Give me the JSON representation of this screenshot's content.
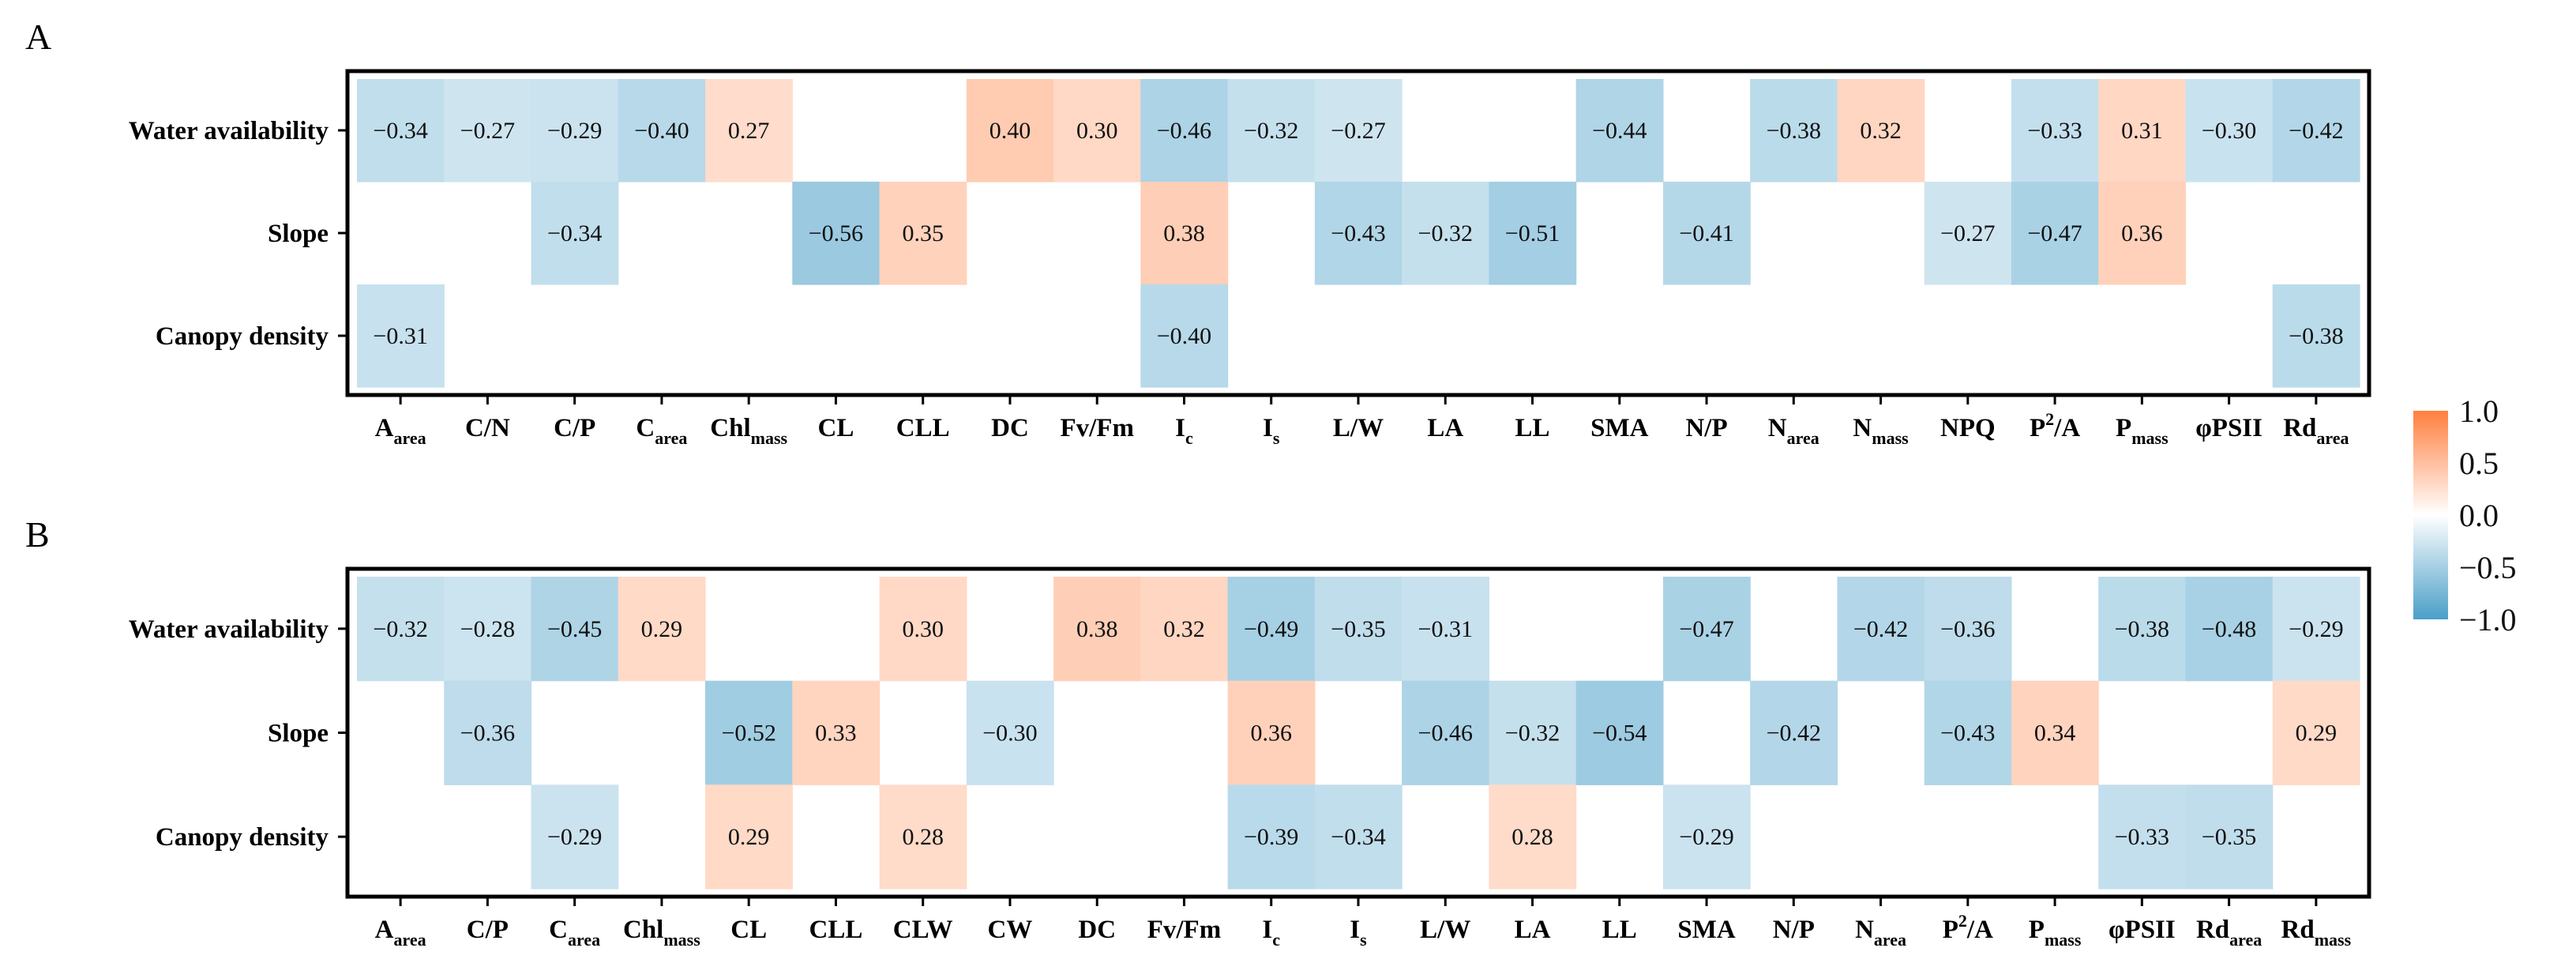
{
  "figure": {
    "legend": {
      "ticks": [
        "1.0",
        "0.5",
        "0.0",
        "−0.5",
        "−1.0"
      ],
      "colors": {
        "neg": "#4a9fc8",
        "mid": "#ffffff",
        "pos": "#ff7f3f"
      }
    }
  },
  "chart_data": [
    {
      "type": "heatmap",
      "panel_label": "A",
      "rows": [
        "Water availability",
        "Slope",
        "Canopy density"
      ],
      "columns": [
        {
          "base": "A",
          "sub": "area",
          "sup": ""
        },
        {
          "base": "C/N",
          "sub": "",
          "sup": ""
        },
        {
          "base": "C/P",
          "sub": "",
          "sup": ""
        },
        {
          "base": "C",
          "sub": "area",
          "sup": ""
        },
        {
          "base": "Chl",
          "sub": "mass",
          "sup": ""
        },
        {
          "base": "CL",
          "sub": "",
          "sup": ""
        },
        {
          "base": "CLL",
          "sub": "",
          "sup": ""
        },
        {
          "base": "DC",
          "sub": "",
          "sup": ""
        },
        {
          "base": "Fv/Fm",
          "sub": "",
          "sup": ""
        },
        {
          "base": "I",
          "sub": "c",
          "sup": ""
        },
        {
          "base": "I",
          "sub": "s",
          "sup": ""
        },
        {
          "base": "L/W",
          "sub": "",
          "sup": ""
        },
        {
          "base": "LA",
          "sub": "",
          "sup": ""
        },
        {
          "base": "LL",
          "sub": "",
          "sup": ""
        },
        {
          "base": "SMA",
          "sub": "",
          "sup": ""
        },
        {
          "base": "N/P",
          "sub": "",
          "sup": ""
        },
        {
          "base": "N",
          "sub": "area",
          "sup": ""
        },
        {
          "base": "N",
          "sub": "mass",
          "sup": ""
        },
        {
          "base": "NPQ",
          "sub": "",
          "sup": ""
        },
        {
          "base": "P",
          "sub": "",
          "sup": "2",
          "tail": "/A"
        },
        {
          "base": "P",
          "sub": "mass",
          "sup": ""
        },
        {
          "base": "φPSII",
          "sub": "",
          "sup": ""
        },
        {
          "base": "Rd",
          "sub": "area",
          "sup": ""
        }
      ],
      "values": [
        [
          -0.34,
          -0.27,
          -0.29,
          -0.4,
          0.27,
          null,
          null,
          0.4,
          0.3,
          -0.46,
          -0.32,
          -0.27,
          null,
          null,
          -0.44,
          null,
          -0.38,
          0.32,
          null,
          -0.33,
          0.31,
          -0.3,
          -0.42
        ],
        [
          null,
          null,
          -0.34,
          null,
          null,
          -0.56,
          0.35,
          null,
          null,
          0.38,
          null,
          -0.43,
          -0.32,
          -0.51,
          null,
          -0.41,
          null,
          null,
          -0.27,
          -0.47,
          0.36,
          null,
          null
        ],
        [
          -0.31,
          null,
          null,
          null,
          null,
          null,
          null,
          null,
          null,
          -0.4,
          null,
          null,
          null,
          null,
          null,
          null,
          null,
          null,
          null,
          null,
          null,
          null,
          -0.38
        ]
      ],
      "labels": [
        [
          "−0.34",
          "−0.27",
          "−0.29",
          "−0.40",
          "0.27",
          "",
          "",
          "0.40",
          "0.30",
          "−0.46",
          "−0.32",
          "−0.27",
          "",
          "",
          "−0.44",
          "",
          "−0.38",
          "0.32",
          "",
          "−0.33",
          "0.31",
          "−0.30",
          "−0.42"
        ],
        [
          "",
          "",
          "−0.34",
          "",
          "",
          "−0.56",
          "0.35",
          "",
          "",
          "0.38",
          "",
          "−0.43",
          "−0.32",
          "−0.51",
          "",
          "−0.41",
          "",
          "",
          "−0.27",
          "−0.47",
          "0.36",
          "",
          ""
        ],
        [
          "−0.31",
          "",
          "",
          "",
          "",
          "",
          "",
          "",
          "",
          "−0.40",
          "",
          "",
          "",
          "",
          "",
          "",
          "",
          "",
          "",
          "",
          "",
          "",
          "−0.38"
        ]
      ]
    },
    {
      "type": "heatmap",
      "panel_label": "B",
      "rows": [
        "Water availability",
        "Slope",
        "Canopy density"
      ],
      "columns": [
        {
          "base": "A",
          "sub": "area",
          "sup": ""
        },
        {
          "base": "C/P",
          "sub": "",
          "sup": ""
        },
        {
          "base": "C",
          "sub": "area",
          "sup": ""
        },
        {
          "base": "Chl",
          "sub": "mass",
          "sup": ""
        },
        {
          "base": "CL",
          "sub": "",
          "sup": ""
        },
        {
          "base": "CLL",
          "sub": "",
          "sup": ""
        },
        {
          "base": "CLW",
          "sub": "",
          "sup": ""
        },
        {
          "base": "CW",
          "sub": "",
          "sup": ""
        },
        {
          "base": "DC",
          "sub": "",
          "sup": ""
        },
        {
          "base": "Fv/Fm",
          "sub": "",
          "sup": ""
        },
        {
          "base": "I",
          "sub": "c",
          "sup": ""
        },
        {
          "base": "I",
          "sub": "s",
          "sup": ""
        },
        {
          "base": "L/W",
          "sub": "",
          "sup": ""
        },
        {
          "base": "LA",
          "sub": "",
          "sup": ""
        },
        {
          "base": "LL",
          "sub": "",
          "sup": ""
        },
        {
          "base": "SMA",
          "sub": "",
          "sup": ""
        },
        {
          "base": "N/P",
          "sub": "",
          "sup": ""
        },
        {
          "base": "N",
          "sub": "area",
          "sup": ""
        },
        {
          "base": "P",
          "sub": "",
          "sup": "2",
          "tail": "/A"
        },
        {
          "base": "P",
          "sub": "mass",
          "sup": ""
        },
        {
          "base": "φPSII",
          "sub": "",
          "sup": ""
        },
        {
          "base": "Rd",
          "sub": "area",
          "sup": ""
        },
        {
          "base": "Rd",
          "sub": "mass",
          "sup": ""
        }
      ],
      "values": [
        [
          -0.32,
          -0.28,
          -0.45,
          0.29,
          null,
          null,
          0.3,
          null,
          0.38,
          0.32,
          -0.49,
          -0.35,
          -0.31,
          null,
          null,
          -0.47,
          null,
          -0.42,
          -0.36,
          null,
          -0.38,
          -0.48,
          -0.29
        ],
        [
          null,
          -0.36,
          null,
          null,
          -0.52,
          0.33,
          null,
          -0.3,
          null,
          null,
          0.36,
          null,
          -0.46,
          -0.32,
          -0.54,
          null,
          -0.42,
          null,
          -0.43,
          0.34,
          null,
          null,
          0.29
        ],
        [
          null,
          null,
          -0.29,
          null,
          0.29,
          null,
          0.28,
          null,
          null,
          null,
          -0.39,
          -0.34,
          null,
          0.28,
          null,
          -0.29,
          null,
          null,
          null,
          null,
          -0.33,
          -0.35,
          null
        ]
      ],
      "labels": [
        [
          "−0.32",
          "−0.28",
          "−0.45",
          "0.29",
          "",
          "",
          "0.30",
          "",
          "0.38",
          "0.32",
          "−0.49",
          "−0.35",
          "−0.31",
          "",
          "",
          "−0.47",
          "",
          "−0.42",
          "−0.36",
          "",
          "−0.38",
          "−0.48",
          "−0.29"
        ],
        [
          "",
          "−0.36",
          "",
          "",
          "−0.52",
          "0.33",
          "",
          "−0.30",
          "",
          "",
          "0.36",
          "",
          "−0.46",
          "−0.32",
          "−0.54",
          "",
          "−0.42",
          "",
          "−0.43",
          "0.34",
          "",
          "",
          "0.29"
        ],
        [
          "",
          "",
          "−0.29",
          "",
          "0.29",
          "",
          "0.28",
          "",
          "",
          "",
          "−0.39",
          "−0.34",
          "",
          "0.28",
          "",
          "−0.29",
          "",
          "",
          "",
          "",
          "−0.33",
          "−0.35",
          ""
        ]
      ]
    }
  ]
}
